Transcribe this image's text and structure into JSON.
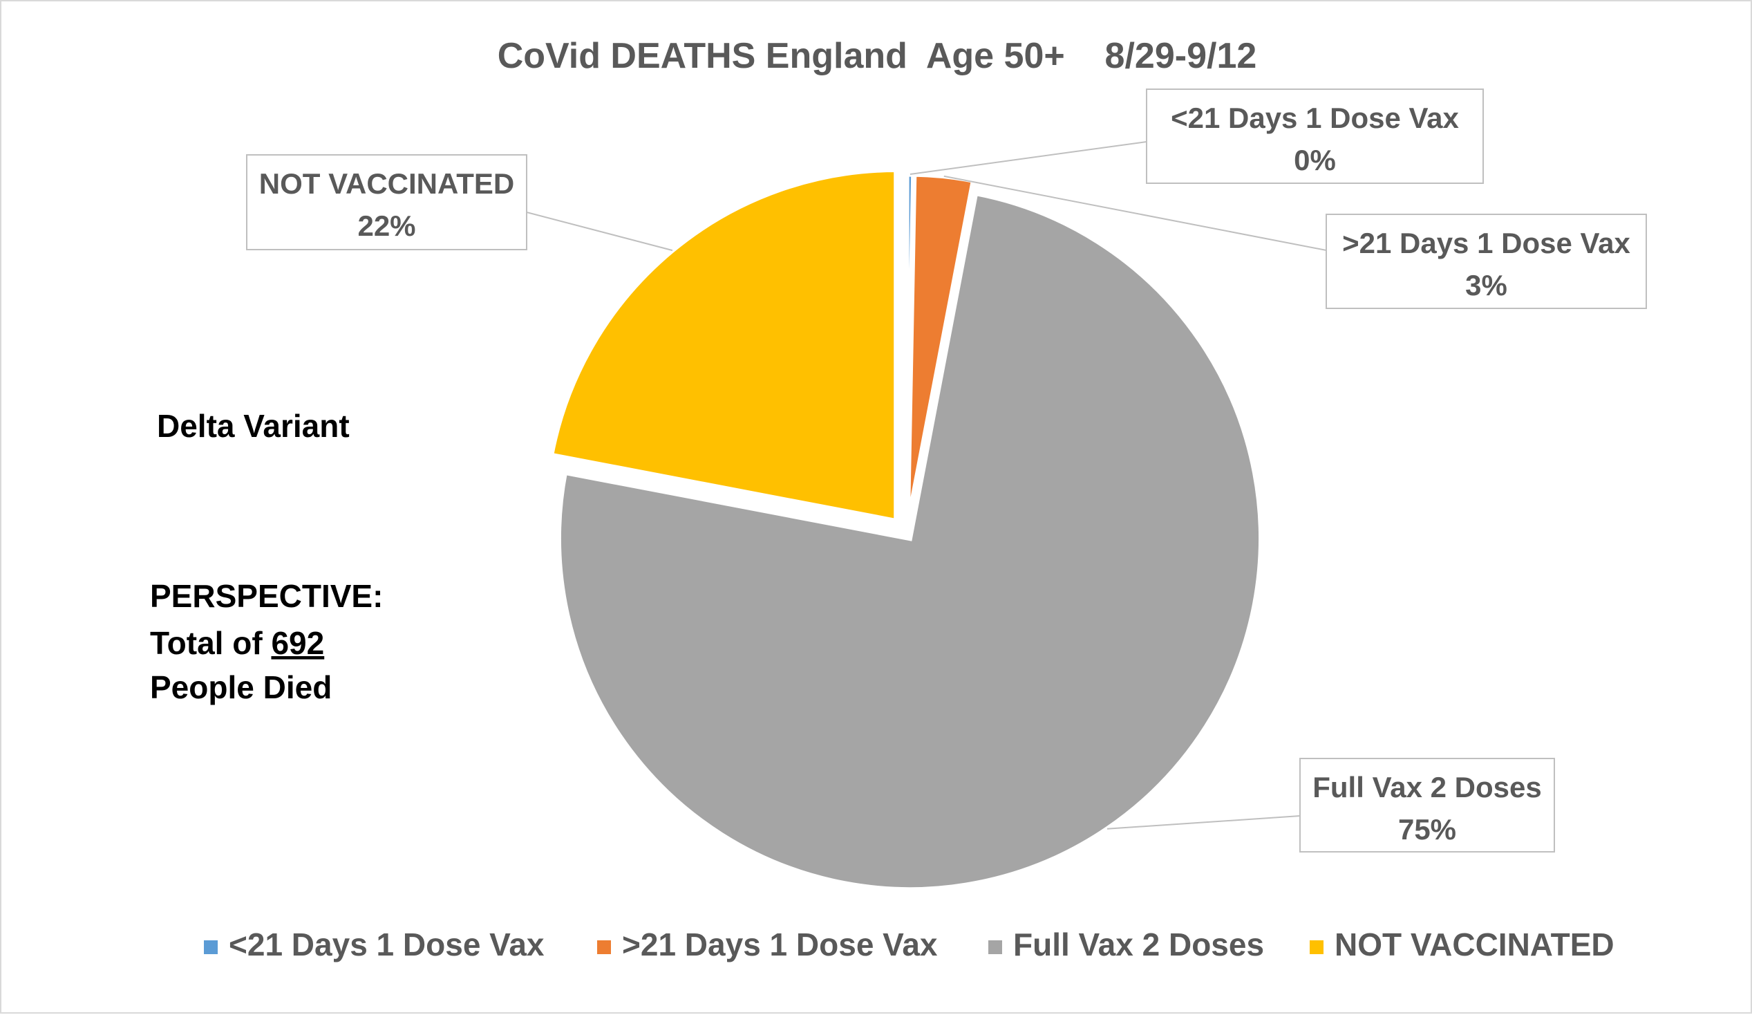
{
  "chart_data": {
    "type": "pie",
    "title": "CoVid DEATHS England  Age 50+    8/29-9/12",
    "categories": [
      "<21 Days 1 Dose Vax",
      ">21 Days 1 Dose Vax",
      "Full Vax 2 Doses",
      "NOT VACCINATED"
    ],
    "values": [
      0.3,
      2.7,
      75,
      22
    ],
    "labels": [
      "0%",
      "3%",
      "75%",
      "22%"
    ],
    "colors": [
      "#5B9BD5",
      "#ED7D31",
      "#A5A5A5",
      "#FFC000"
    ],
    "legend_position": "bottom",
    "exploded": true
  },
  "annotations": {
    "variant": "Delta Variant",
    "perspective_line1": "PERSPECTIVE:",
    "perspective_line2_prefix": "Total of ",
    "perspective_number": "692",
    "perspective_line3": "People Died"
  }
}
